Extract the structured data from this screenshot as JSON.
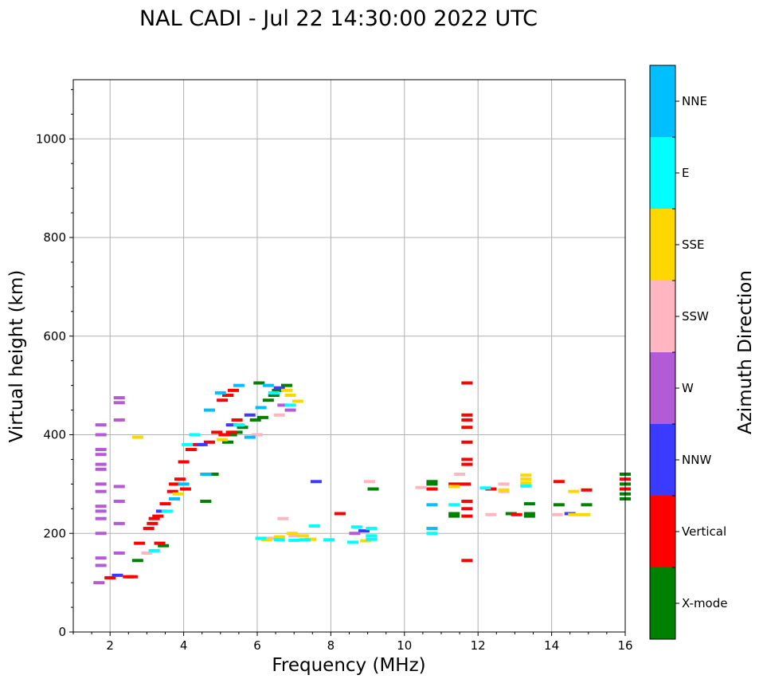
{
  "chart_data": {
    "type": "scatter",
    "title": "NAL CADI - Jul 22 14:30:00 2022 UTC",
    "xlabel": "Frequency (MHz)",
    "ylabel": "Virtual height (km)",
    "xlim": [
      1,
      16
    ],
    "ylim": [
      0,
      1120
    ],
    "x_major_ticks": [
      2,
      4,
      6,
      8,
      10,
      12,
      14,
      16
    ],
    "x_minor_ticks": [
      1,
      1.5,
      2.5,
      3,
      3.5,
      4.5,
      5,
      5.5,
      6.5,
      7,
      7.5,
      8.5,
      9,
      9.5,
      10.5,
      11,
      11.5,
      12.5,
      13,
      13.5,
      14.5,
      15,
      15.5
    ],
    "y_major_ticks": [
      0,
      200,
      400,
      600,
      800,
      1000
    ],
    "y_minor_ticks": [
      50,
      100,
      150,
      250,
      300,
      350,
      450,
      500,
      550,
      650,
      700,
      750,
      850,
      900,
      950,
      1050,
      1100
    ],
    "grid": true,
    "colorbar": {
      "label": "Azimuth Direction",
      "categories": [
        "X-mode",
        "Vertical",
        "NNW",
        "W",
        "SSW",
        "SSE",
        "E",
        "NNE"
      ],
      "colors": [
        "#008000",
        "#ff0000",
        "#3b3bff",
        "#b35ad6",
        "#ffb6c1",
        "#ffd700",
        "#00ffff",
        "#00bfff"
      ]
    },
    "series": [
      {
        "name": "X-mode",
        "points": [
          [
            2.75,
            145
          ],
          [
            3.45,
            175
          ],
          [
            4.6,
            265
          ],
          [
            5.3,
            400
          ],
          [
            5.6,
            415
          ],
          [
            5.95,
            430
          ],
          [
            6.15,
            435
          ],
          [
            6.3,
            470
          ],
          [
            6.45,
            480
          ],
          [
            6.05,
            505
          ],
          [
            4.8,
            320
          ],
          [
            10.75,
            300
          ],
          [
            10.75,
            305
          ],
          [
            11.35,
            235
          ],
          [
            11.35,
            240
          ],
          [
            12.9,
            240
          ],
          [
            13.4,
            235
          ],
          [
            13.4,
            240
          ],
          [
            13.4,
            260
          ],
          [
            14.2,
            258
          ],
          [
            14.95,
            258
          ],
          [
            16,
            300
          ],
          [
            16,
            320
          ],
          [
            16,
            280
          ],
          [
            16,
            270
          ],
          [
            9.15,
            290
          ],
          [
            6.8,
            500
          ],
          [
            6.55,
            490
          ],
          [
            5.2,
            385
          ],
          [
            5.45,
            405
          ]
        ]
      },
      {
        "name": "Vertical",
        "points": [
          [
            2.0,
            110
          ],
          [
            2.5,
            112
          ],
          [
            2.8,
            180
          ],
          [
            3.05,
            210
          ],
          [
            3.15,
            220
          ],
          [
            3.3,
            235
          ],
          [
            3.5,
            260
          ],
          [
            3.7,
            285
          ],
          [
            3.9,
            310
          ],
          [
            4.0,
            345
          ],
          [
            4.2,
            370
          ],
          [
            4.4,
            380
          ],
          [
            4.7,
            385
          ],
          [
            4.9,
            405
          ],
          [
            5.1,
            400
          ],
          [
            5.3,
            405
          ],
          [
            5.2,
            480
          ],
          [
            5.35,
            490
          ],
          [
            5.05,
            470
          ],
          [
            5.45,
            430
          ],
          [
            3.75,
            300
          ],
          [
            3.35,
            180
          ],
          [
            4.05,
            290
          ],
          [
            8.25,
            240
          ],
          [
            10.75,
            290
          ],
          [
            11.35,
            295
          ],
          [
            11.35,
            300
          ],
          [
            11.65,
            300
          ],
          [
            11.7,
            505
          ],
          [
            11.7,
            440
          ],
          [
            11.7,
            430
          ],
          [
            11.7,
            415
          ],
          [
            11.7,
            385
          ],
          [
            11.7,
            350
          ],
          [
            11.7,
            340
          ],
          [
            11.7,
            265
          ],
          [
            11.7,
            250
          ],
          [
            11.7,
            235
          ],
          [
            11.7,
            145
          ],
          [
            12.35,
            290
          ],
          [
            13.05,
            238
          ],
          [
            14.2,
            305
          ],
          [
            14.95,
            288
          ],
          [
            16,
            290
          ],
          [
            16,
            310
          ],
          [
            3.2,
            230
          ],
          [
            2.6,
            112
          ]
        ]
      },
      {
        "name": "NNW",
        "points": [
          [
            7.6,
            305
          ],
          [
            8.9,
            205
          ],
          [
            3.4,
            245
          ],
          [
            4.5,
            380
          ],
          [
            5.3,
            420
          ],
          [
            5.8,
            440
          ],
          [
            14.5,
            240
          ],
          [
            6.6,
            495
          ],
          [
            2.2,
            115
          ]
        ]
      },
      {
        "name": "W",
        "points": [
          [
            1.7,
            100
          ],
          [
            1.75,
            135
          ],
          [
            1.75,
            150
          ],
          [
            1.75,
            200
          ],
          [
            1.75,
            230
          ],
          [
            1.75,
            245
          ],
          [
            1.75,
            255
          ],
          [
            1.75,
            285
          ],
          [
            1.75,
            300
          ],
          [
            1.75,
            330
          ],
          [
            1.75,
            340
          ],
          [
            1.75,
            360
          ],
          [
            1.75,
            370
          ],
          [
            1.75,
            400
          ],
          [
            1.75,
            420
          ],
          [
            2.25,
            475
          ],
          [
            2.25,
            465
          ],
          [
            2.25,
            430
          ],
          [
            2.25,
            295
          ],
          [
            2.25,
            265
          ],
          [
            2.25,
            220
          ],
          [
            2.25,
            160
          ],
          [
            8.65,
            200
          ],
          [
            6.9,
            450
          ],
          [
            6.7,
            460
          ]
        ]
      },
      {
        "name": "SSW",
        "points": [
          [
            6.7,
            230
          ],
          [
            9.05,
            305
          ],
          [
            10.45,
            293
          ],
          [
            11.5,
            320
          ],
          [
            12.35,
            238
          ],
          [
            12.7,
            300
          ],
          [
            12.7,
            285
          ],
          [
            14.15,
            238
          ],
          [
            6.0,
            400
          ],
          [
            6.25,
            190
          ],
          [
            6.5,
            190
          ],
          [
            6.6,
            440
          ],
          [
            7.0,
            195
          ],
          [
            3.0,
            160
          ]
        ]
      },
      {
        "name": "SSE",
        "points": [
          [
            2.75,
            395
          ],
          [
            6.25,
            187
          ],
          [
            6.6,
            193
          ],
          [
            6.95,
            200
          ],
          [
            7.25,
            195
          ],
          [
            7.45,
            188
          ],
          [
            8.95,
            185
          ],
          [
            11.35,
            295
          ],
          [
            12.7,
            288
          ],
          [
            13.3,
            302
          ],
          [
            13.3,
            310
          ],
          [
            13.3,
            318
          ],
          [
            14.6,
            285
          ],
          [
            14.6,
            238
          ],
          [
            14.9,
            238
          ],
          [
            7.1,
            468
          ],
          [
            6.9,
            480
          ],
          [
            6.8,
            490
          ],
          [
            5.05,
            390
          ],
          [
            3.85,
            280
          ]
        ]
      },
      {
        "name": "E",
        "points": [
          [
            6.1,
            190
          ],
          [
            6.6,
            187
          ],
          [
            7.0,
            186
          ],
          [
            7.3,
            187
          ],
          [
            7.55,
            215
          ],
          [
            7.95,
            187
          ],
          [
            8.6,
            182
          ],
          [
            8.7,
            213
          ],
          [
            9.1,
            188
          ],
          [
            9.1,
            195
          ],
          [
            9.1,
            210
          ],
          [
            10.75,
            200
          ],
          [
            11.35,
            258
          ],
          [
            12.2,
            292
          ],
          [
            13.3,
            296
          ],
          [
            3.55,
            245
          ],
          [
            4.1,
            380
          ],
          [
            4.3,
            400
          ],
          [
            5.5,
            420
          ],
          [
            6.45,
            485
          ],
          [
            6.9,
            460
          ],
          [
            3.2,
            165
          ]
        ]
      },
      {
        "name": "NNE",
        "points": [
          [
            10.75,
            210
          ],
          [
            10.75,
            258
          ],
          [
            4.7,
            450
          ],
          [
            5.0,
            485
          ],
          [
            5.5,
            500
          ],
          [
            6.3,
            500
          ],
          [
            4.6,
            320
          ],
          [
            3.75,
            270
          ],
          [
            4.0,
            300
          ],
          [
            5.8,
            395
          ],
          [
            6.1,
            455
          ]
        ]
      }
    ]
  }
}
